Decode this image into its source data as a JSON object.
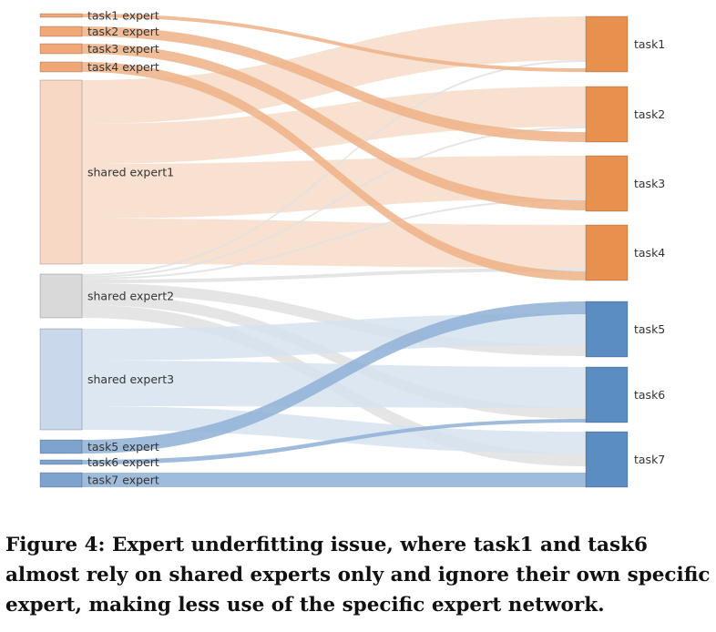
{
  "figure": {
    "caption": "Figure 4: Expert underfitting issue, where task1 and task6 almost rely on shared experts only and ignore their own specific expert, making less use of the specific expert network.",
    "colors": {
      "task_node_orange": "#e8914f",
      "task_node_blue": "#5b8cc2",
      "specific_expert_orange": "#f0a877",
      "specific_expert_blue": "#7ea3cf",
      "shared_expert1": "#f7d8c4",
      "shared_expert2": "#d9d9d9",
      "shared_expert3": "#c9d8ea",
      "link_orange_light": "#f7dcc9",
      "link_grey": "#e0e0e0",
      "link_blue_light": "#d7e3f0",
      "link_orange_strong": "#efb186",
      "link_blue_strong": "#8fb0d6"
    },
    "source_nodes": [
      {
        "id": "task1_expert",
        "label": "task1 expert"
      },
      {
        "id": "task2_expert",
        "label": "task2 expert"
      },
      {
        "id": "task3_expert",
        "label": "task3 expert"
      },
      {
        "id": "task4_expert",
        "label": "task4 expert"
      },
      {
        "id": "shared_expert1",
        "label": "shared expert1"
      },
      {
        "id": "shared_expert2",
        "label": "shared expert2"
      },
      {
        "id": "shared_expert3",
        "label": "shared expert3"
      },
      {
        "id": "task5_expert",
        "label": "task5 expert"
      },
      {
        "id": "task6_expert",
        "label": "task6 expert"
      },
      {
        "id": "task7_expert",
        "label": "task7 expert"
      }
    ],
    "target_nodes": [
      {
        "id": "task1",
        "label": "task1"
      },
      {
        "id": "task2",
        "label": "task2"
      },
      {
        "id": "task3",
        "label": "task3"
      },
      {
        "id": "task4",
        "label": "task4"
      },
      {
        "id": "task5",
        "label": "task5"
      },
      {
        "id": "task6",
        "label": "task6"
      },
      {
        "id": "task7",
        "label": "task7"
      }
    ]
  }
}
